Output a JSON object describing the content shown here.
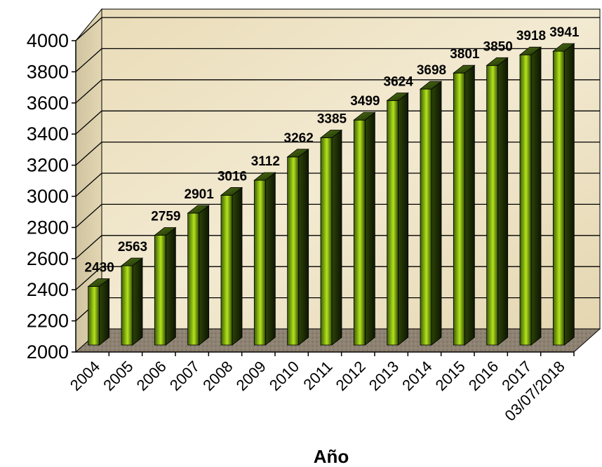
{
  "chart_data": {
    "type": "bar",
    "title": "",
    "xlabel": "Año",
    "ylabel": "",
    "categories": [
      "2004",
      "2005",
      "2006",
      "2007",
      "2008",
      "2009",
      "2010",
      "2011",
      "2012",
      "2013",
      "2014",
      "2015",
      "2016",
      "2017",
      "03/07/2018"
    ],
    "values": [
      2430,
      2563,
      2759,
      2901,
      3016,
      3112,
      3262,
      3385,
      3499,
      3624,
      3698,
      3801,
      3850,
      3918,
      3941
    ],
    "ylim": [
      2000,
      4000
    ],
    "yticks": [
      "2000",
      "2200",
      "2400",
      "2600",
      "2800",
      "3000",
      "3200",
      "3400",
      "3600",
      "3800",
      "4000"
    ],
    "grid": true,
    "legend": "none",
    "colors": {
      "bar_light": "#b4e31a",
      "bar_dark": "#1c2a05",
      "wall": "#ece0bf",
      "floor": "#8c7f70"
    }
  }
}
